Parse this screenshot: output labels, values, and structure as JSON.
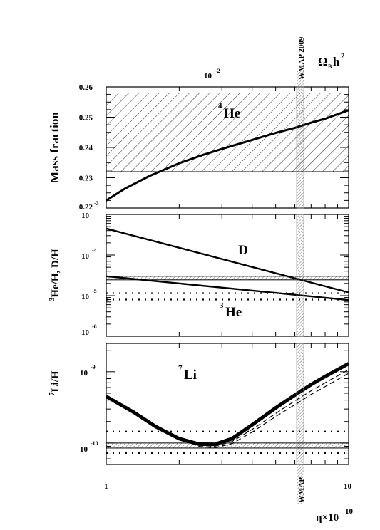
{
  "figure": {
    "top_axis": {
      "label_main": "Ω",
      "label_sub": "B",
      "label_h": "h",
      "label_sup": "2",
      "tick_mantissa": "10",
      "tick_exp": "-2",
      "tick_value": 0.01
    },
    "wmap_top_label": "WMAP 2009",
    "wmap_bottom_label": "WMAP",
    "x_axis": {
      "label": "η×10",
      "label_sup": "10",
      "scale": "log",
      "range": [
        1,
        10
      ],
      "tick_labels": [
        "1",
        "10"
      ]
    }
  },
  "chart_data": [
    {
      "type": "line",
      "panel": "helium4",
      "ylabel": "Mass fraction",
      "scale_y": "linear",
      "ylim": [
        0.22,
        0.26
      ],
      "tick_labels": [
        "0.26",
        "0.25",
        "0.24",
        "0.23",
        "0.22"
      ],
      "tick_values": [
        0.26,
        0.25,
        0.24,
        0.23,
        0.22
      ],
      "corner_label": "-3",
      "element_label": "He",
      "element_sup": "4",
      "observed_band": [
        0.232,
        0.258
      ],
      "series": [
        {
          "x": [
            1,
            1.2,
            1.5,
            2,
            2.5,
            3,
            4,
            5,
            6,
            7,
            8,
            10
          ],
          "y": [
            0.2225,
            0.2265,
            0.2305,
            0.2348,
            0.2375,
            0.2395,
            0.2425,
            0.2448,
            0.2465,
            0.2482,
            0.2495,
            0.2523
          ]
        }
      ]
    },
    {
      "type": "line",
      "panel": "deuterium-helium3",
      "ylabel": "He/H, D/H",
      "ylabel_sup": "3",
      "scale_y": "log",
      "ylim": [
        1e-06,
        0.001
      ],
      "tick_mantissas": [
        "10",
        "10",
        "10",
        "10"
      ],
      "tick_exps": [
        "",
        "-4",
        "-5",
        "-6"
      ],
      "tick_values": [
        0.001,
        0.0001,
        1e-05,
        1e-06
      ],
      "labels": [
        {
          "text": "D",
          "sup": ""
        },
        {
          "text": "He",
          "sup": "3"
        }
      ],
      "d_observed_band": [
        2.45e-05,
        3e-05
      ],
      "he3_upper_limits": [
        1.15e-05,
        8e-06
      ],
      "series": [
        {
          "x": [
            1,
            10
          ],
          "y": [
            0.00045,
            1.2e-05
          ]
        },
        {
          "x": [
            1,
            10
          ],
          "y": [
            3e-05,
            7.8e-06
          ]
        }
      ]
    },
    {
      "type": "line",
      "panel": "lithium7",
      "ylabel": "Li/H",
      "ylabel_sup": "7",
      "scale_y": "log",
      "ylim": [
        5e-11,
        2.5e-09
      ],
      "tick_mantissas": [
        "10",
        "10"
      ],
      "tick_exps": [
        "-9",
        "-10"
      ],
      "tick_values": [
        1e-09,
        1e-10
      ],
      "element_label": "Li",
      "element_sup": "7",
      "observed_band": [
        8.5e-11,
        1e-10
      ],
      "dotted_limits": [
        1.45e-10,
        7.2e-11
      ],
      "series": [
        {
          "x": [
            1,
            1.3,
            1.6,
            2.0,
            2.4,
            2.8,
            3.3,
            4,
            5,
            6,
            7,
            8,
            10
          ],
          "y": [
            4.5e-10,
            2.7e-10,
            1.7e-10,
            1.15e-10,
            9.7e-11,
            9.6e-11,
            1.15e-10,
            1.8e-10,
            3.1e-10,
            4.7e-10,
            6.6e-10,
            8.6e-10,
            1.3e-09
          ]
        },
        {
          "x": [
            2.4,
            2.8,
            3.3,
            4,
            5,
            6,
            7,
            8,
            10
          ],
          "y": [
            9.3e-11,
            9e-11,
            1.05e-10,
            1.55e-10,
            2.6e-10,
            3.9e-10,
            5.4e-10,
            7e-10,
            1.07e-09
          ]
        },
        {
          "x": [
            2.4,
            2.8,
            3.3,
            4,
            5,
            6,
            7,
            8,
            10
          ],
          "y": [
            9e-11,
            8.6e-11,
            9.8e-11,
            1.42e-10,
            2.35e-10,
            3.45e-10,
            4.8e-10,
            6.2e-10,
            9.5e-10
          ]
        }
      ]
    }
  ]
}
